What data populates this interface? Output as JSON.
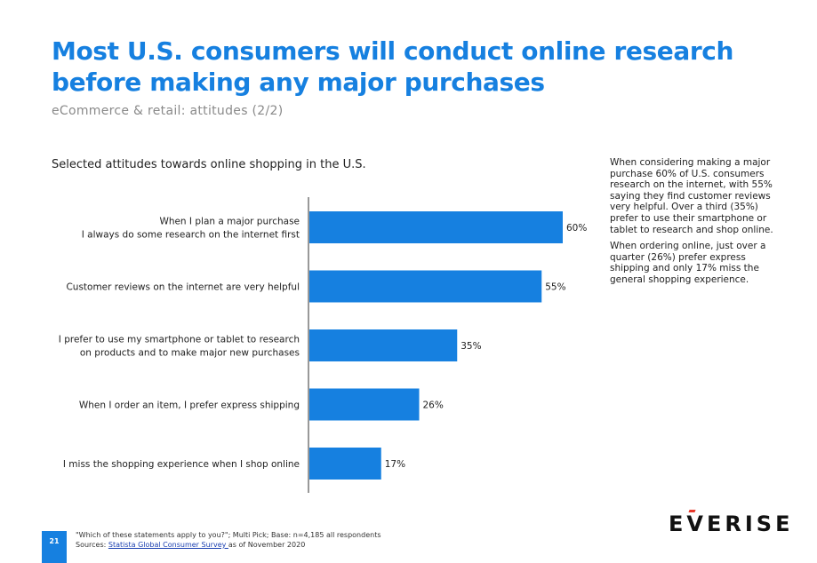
{
  "header": {
    "title_line1": "Most U.S. consumers will conduct online research",
    "title_line2": "before making any major purchases",
    "subtitle": "eCommerce & retail: attitudes (2/2)"
  },
  "chart_title": "Selected attitudes towards online shopping in the U.S.",
  "side_text": {
    "paragraph1": "When considering making a major purchase 60% of U.S. consumers research on the internet, with 55% saying they find customer reviews very helpful. Over a third (35%) prefer to use their smartphone or tablet to research and shop online.",
    "paragraph2": "When ordering online, just over a quarter (26%) prefer express shipping and only 17% miss the general shopping experience."
  },
  "footer": {
    "page_number": "21",
    "note": "\"Which of these statements apply to you?\"; Multi Pick; Base: n=4,185 all respondents",
    "sources_prefix": "Sources: ",
    "sources_link": "Statista Global Consumer Survey ",
    "sources_suffix": "as of November 2020"
  },
  "logo": {
    "pre": "E",
    "v": "V",
    "post": "ERISE"
  },
  "colors": {
    "accent": "#1680e0",
    "bar": "#1680e0",
    "logo_accent": "#e8392b"
  },
  "chart_data": {
    "type": "bar",
    "orientation": "horizontal",
    "categories": [
      [
        "When I plan a major purchase",
        "I always do some research on the internet first"
      ],
      [
        "Customer reviews on the internet are very helpful"
      ],
      [
        "I prefer to use my smartphone or tablet to research",
        "on products and to make major new purchases"
      ],
      [
        "When I order an item, I prefer express shipping"
      ],
      [
        "I miss the shopping experience when I shop online"
      ]
    ],
    "values": [
      60,
      55,
      35,
      26,
      17
    ],
    "data_labels": [
      "60%",
      "55%",
      "35%",
      "26%",
      "17%"
    ],
    "xlim": [
      0,
      60
    ],
    "grid": false
  }
}
